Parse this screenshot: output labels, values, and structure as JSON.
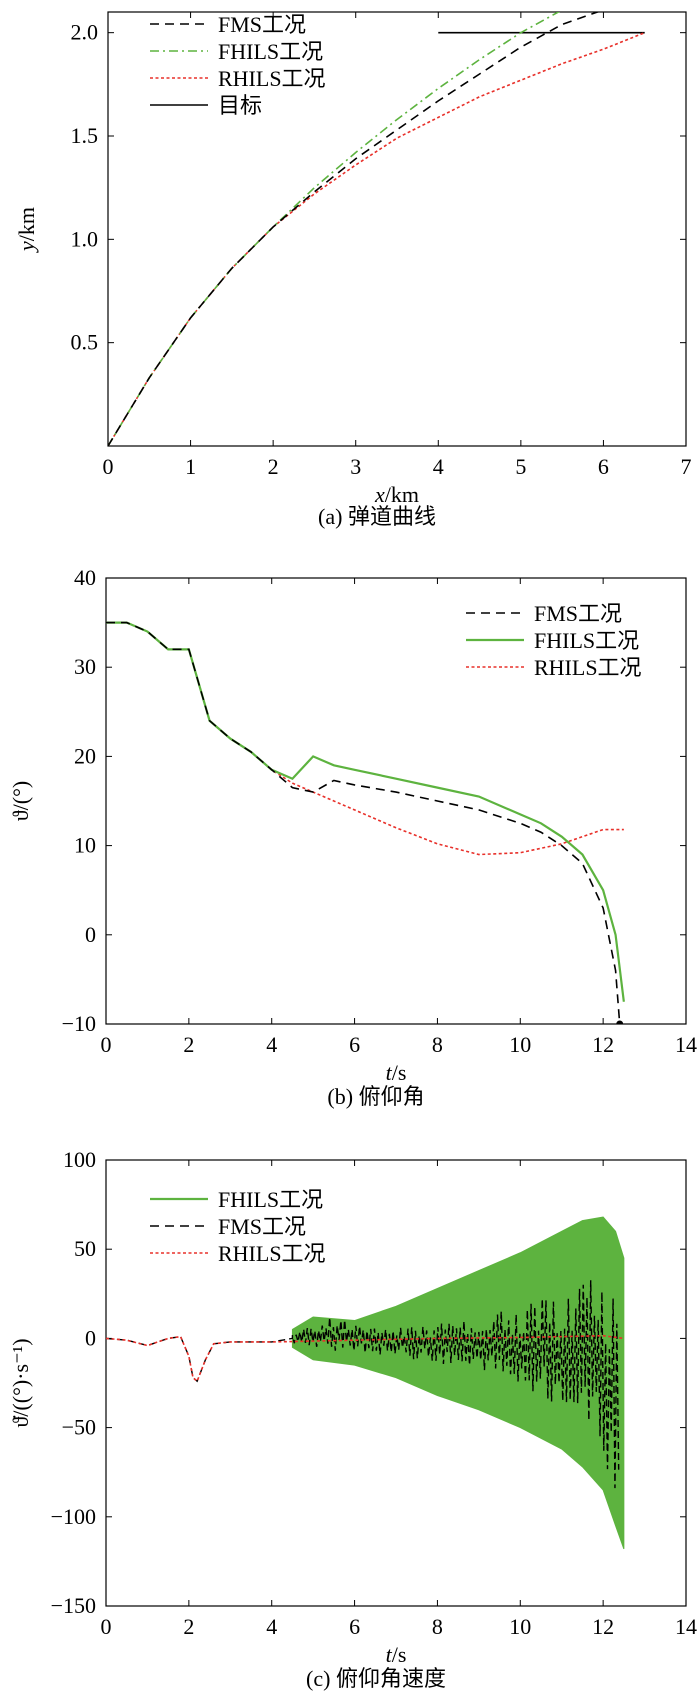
{
  "chart_data": [
    {
      "id": "a",
      "type": "line",
      "caption": "(a) 弹道曲线",
      "xlabel_italic": "x",
      "xlabel_unit": "/km",
      "ylabel_italic": "y",
      "ylabel_unit": "/km",
      "xlim": [
        0,
        7
      ],
      "ylim": [
        0,
        2.1
      ],
      "xticks": [
        "0",
        "1",
        "2",
        "3",
        "4",
        "5",
        "6",
        "7"
      ],
      "yticks": [
        "0.5",
        "1.0",
        "1.5",
        "2.0"
      ],
      "ytick_values": [
        0.5,
        1.0,
        1.5,
        2.0
      ],
      "legend_position": "top-left",
      "grid": false,
      "series": [
        {
          "name": "FMS工况",
          "style": "dashed",
          "color": "#000000",
          "x": [
            0,
            0.5,
            1,
            1.5,
            2,
            2.5,
            3,
            3.5,
            4,
            4.5,
            5,
            5.5,
            6,
            6.5
          ],
          "y": [
            0,
            0.33,
            0.62,
            0.86,
            1.06,
            1.23,
            1.39,
            1.53,
            1.67,
            1.8,
            1.93,
            2.04,
            2.11,
            2.14
          ]
        },
        {
          "name": "FHILS工况",
          "style": "dashdot",
          "color": "#5db33f",
          "x": [
            0,
            0.5,
            1,
            1.5,
            2,
            2.5,
            3,
            3.5,
            4,
            4.5,
            5,
            5.5
          ],
          "y": [
            0,
            0.33,
            0.62,
            0.86,
            1.06,
            1.25,
            1.42,
            1.58,
            1.73,
            1.87,
            2.0,
            2.11
          ]
        },
        {
          "name": "RHILS工况",
          "style": "dotted",
          "color": "#e8302a",
          "x": [
            0,
            0.5,
            1,
            1.5,
            2,
            2.5,
            3,
            3.5,
            4,
            4.5,
            5,
            5.5,
            6,
            6.5
          ],
          "y": [
            0,
            0.33,
            0.62,
            0.86,
            1.06,
            1.22,
            1.36,
            1.49,
            1.59,
            1.69,
            1.77,
            1.85,
            1.92,
            2.0
          ]
        },
        {
          "name": "目标",
          "style": "solid",
          "color": "#000000",
          "x": [
            4.0,
            6.5
          ],
          "y": [
            2.0,
            2.0
          ]
        }
      ]
    },
    {
      "id": "b",
      "type": "line",
      "caption": "(b) 俯仰角",
      "xlabel_italic": "t",
      "xlabel_unit": "/s",
      "ylabel": "ϑ/(°)",
      "xlim": [
        0,
        14
      ],
      "ylim": [
        -10,
        40
      ],
      "xticks": [
        "0",
        "2",
        "4",
        "6",
        "8",
        "10",
        "12",
        "14"
      ],
      "yticks": [
        "−10",
        "0",
        "10",
        "20",
        "30",
        "40"
      ],
      "ytick_values": [
        -10,
        0,
        10,
        20,
        30,
        40
      ],
      "legend_position": "top-right",
      "grid": false,
      "series": [
        {
          "name": "FMS工况",
          "style": "dashed",
          "color": "#000000",
          "x": [
            0,
            0.5,
            1,
            1.5,
            2,
            2.5,
            3,
            3.5,
            4,
            4.5,
            5,
            5.5,
            6,
            7,
            8,
            9,
            10,
            10.5,
            11,
            11.5,
            12,
            12.3,
            12.4
          ],
          "y": [
            35,
            35,
            34,
            32,
            32,
            24,
            22,
            20.5,
            18.5,
            16.5,
            16,
            17.3,
            16.8,
            16,
            15,
            14,
            12.5,
            11.5,
            10,
            8,
            3,
            -4,
            -10
          ]
        },
        {
          "name": "FHILS工况",
          "style": "solid",
          "color": "#5db33f",
          "x": [
            0,
            0.5,
            1,
            1.5,
            2,
            2.5,
            3,
            3.5,
            4,
            4.5,
            5,
            5.5,
            6,
            7,
            8,
            9,
            10,
            10.5,
            11,
            11.5,
            12,
            12.3,
            12.5
          ],
          "y": [
            35,
            35,
            34,
            32,
            32,
            24,
            22,
            20.5,
            18.5,
            17.5,
            20,
            19,
            18.5,
            17.5,
            16.5,
            15.5,
            13.5,
            12.5,
            11,
            9,
            5,
            0,
            -7.5
          ]
        },
        {
          "name": "RHILS工况",
          "style": "dotted",
          "color": "#e8302a",
          "x": [
            0,
            0.5,
            1,
            1.5,
            2,
            2.5,
            3,
            3.5,
            4,
            4.5,
            5,
            6,
            7,
            8,
            9,
            10,
            11,
            12,
            12.5
          ],
          "y": [
            35,
            35,
            34,
            32,
            32,
            24,
            22,
            20.5,
            18.5,
            17,
            16,
            14,
            12,
            10.2,
            9,
            9.2,
            10.2,
            11.8,
            11.8
          ]
        }
      ]
    },
    {
      "id": "c",
      "type": "line",
      "caption": "(c) 俯仰角速度",
      "xlabel_italic": "t",
      "xlabel_unit": "/s",
      "ylabel": "ϑ̇/((°)·s⁻¹)",
      "xlim": [
        0,
        14
      ],
      "ylim": [
        -150,
        100
      ],
      "xticks": [
        "0",
        "2",
        "4",
        "6",
        "8",
        "10",
        "12",
        "14"
      ],
      "yticks": [
        "−150",
        "−100",
        "−50",
        "0",
        "50",
        "100"
      ],
      "ytick_values": [
        -150,
        -100,
        -50,
        0,
        50,
        100
      ],
      "legend_position": "top-left",
      "grid": false,
      "series": [
        {
          "name": "FHILS工况",
          "style": "band",
          "color": "#5db33f",
          "x": [
            4.5,
            5,
            6,
            7,
            8,
            9,
            10,
            11,
            11.5,
            12,
            12.3,
            12.5
          ],
          "upper": [
            5,
            12,
            10,
            18,
            28,
            38,
            48,
            60,
            66,
            68,
            60,
            45
          ],
          "lower": [
            -5,
            -12,
            -15,
            -22,
            -32,
            -40,
            -50,
            -62,
            -72,
            -85,
            -105,
            -118
          ]
        },
        {
          "name": "FMS工况",
          "style": "dashed",
          "color": "#000000",
          "x": [
            4.5,
            5,
            5.5,
            6,
            7,
            8,
            9,
            10,
            11,
            11.5,
            12,
            12.4
          ],
          "upper": [
            3,
            8,
            14,
            8,
            6,
            8,
            12,
            18,
            26,
            32,
            34,
            20
          ],
          "lower": [
            -3,
            -6,
            -8,
            -8,
            -10,
            -14,
            -20,
            -28,
            -40,
            -50,
            -70,
            -98
          ]
        },
        {
          "name": "RHILS工况",
          "style": "dotted",
          "color": "#e8302a",
          "x": [
            0,
            0.5,
            1,
            1.5,
            1.8,
            2,
            2.1,
            2.2,
            2.4,
            2.6,
            3,
            4,
            6,
            8,
            10,
            11,
            12,
            12.5
          ],
          "y": [
            0,
            -1,
            -4,
            0,
            1,
            -10,
            -22,
            -24,
            -12,
            -3,
            -2,
            -2,
            -1,
            0,
            0.5,
            1,
            1.5,
            0
          ]
        }
      ]
    }
  ]
}
